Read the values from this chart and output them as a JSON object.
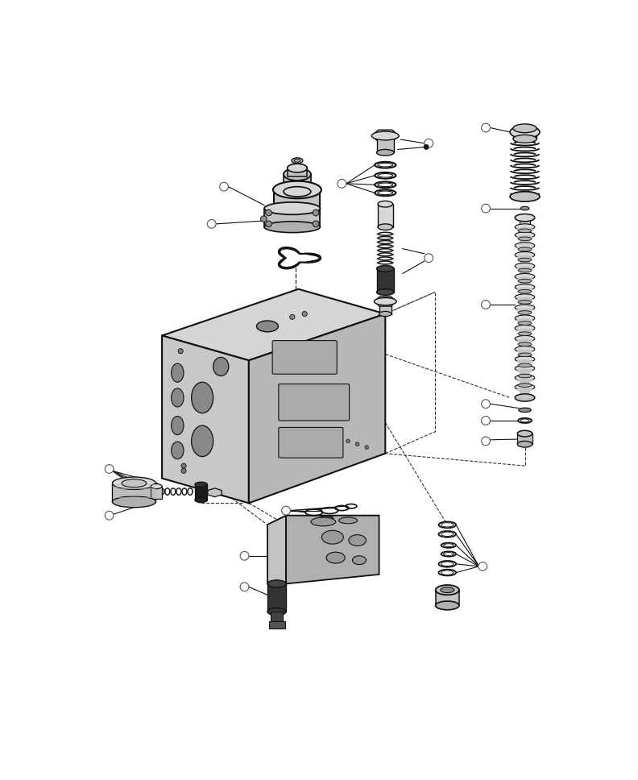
{
  "bg": "#ffffff",
  "lc": "#111111",
  "lc2": "#333333",
  "gray1": "#d8d8d8",
  "gray2": "#c4c4c4",
  "gray3": "#b0b0b0",
  "gray4": "#909090",
  "dark": "#1a1a1a",
  "white": "#ffffff",
  "fig_w": 7.92,
  "fig_h": 9.68,
  "dpi": 100
}
